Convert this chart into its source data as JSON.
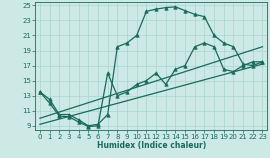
{
  "xlabel": "Humidex (Indice chaleur)",
  "bg_color": "#cce9e5",
  "line_color": "#1a6b5a",
  "grid_color": "#aad4ce",
  "xlim": [
    -0.5,
    23.5
  ],
  "ylim": [
    8.5,
    25.5
  ],
  "xticks": [
    0,
    1,
    2,
    3,
    4,
    5,
    6,
    7,
    8,
    9,
    10,
    11,
    12,
    13,
    14,
    15,
    16,
    17,
    18,
    19,
    20,
    21,
    22,
    23
  ],
  "yticks": [
    9,
    11,
    13,
    15,
    17,
    19,
    21,
    23,
    25
  ],
  "series": [
    {
      "x": [
        0,
        1,
        2,
        3,
        4,
        5,
        6,
        7,
        8,
        9,
        10,
        11,
        12,
        13,
        14,
        15,
        16,
        17,
        18,
        19,
        20,
        21,
        22,
        23
      ],
      "y": [
        13.5,
        12.5,
        10.5,
        10.5,
        9.8,
        9.0,
        9.2,
        10.5,
        19.5,
        20.0,
        21.0,
        24.2,
        24.5,
        24.7,
        24.8,
        24.3,
        23.8,
        23.5,
        21.0,
        20.0,
        19.5,
        17.2,
        17.0,
        17.5
      ],
      "marker": "^",
      "markersize": 2.5,
      "lw": 0.9
    },
    {
      "x": [
        0,
        1,
        2,
        3,
        4,
        5,
        6,
        7,
        8,
        9,
        10,
        11,
        12,
        13,
        14,
        15,
        16,
        17,
        18,
        19,
        20,
        21,
        22,
        23
      ],
      "y": [
        13.5,
        12.0,
        10.3,
        10.2,
        9.5,
        8.9,
        9.0,
        16.0,
        13.0,
        13.5,
        14.5,
        15.0,
        16.0,
        14.5,
        16.5,
        17.0,
        19.5,
        20.0,
        19.5,
        16.5,
        16.2,
        17.0,
        17.5,
        17.5
      ],
      "marker": "^",
      "markersize": 2.5,
      "lw": 0.9
    },
    {
      "x": [
        0,
        23
      ],
      "y": [
        10.0,
        19.5
      ],
      "marker": null,
      "markersize": 0,
      "lw": 0.9
    },
    {
      "x": [
        0,
        23
      ],
      "y": [
        9.2,
        17.2
      ],
      "marker": null,
      "markersize": 0,
      "lw": 0.9
    }
  ]
}
